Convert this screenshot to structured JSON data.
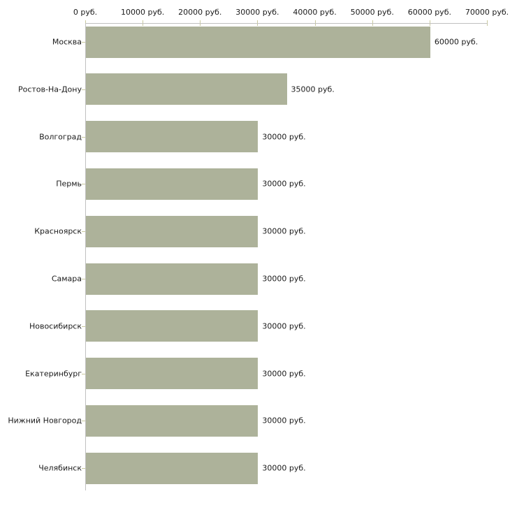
{
  "chart_data": {
    "type": "bar",
    "orientation": "horizontal",
    "title": "",
    "xlabel": "",
    "ylabel": "",
    "unit": "руб.",
    "categories": [
      "Москва",
      "Ростов-На-Дону",
      "Волгоград",
      "Пермь",
      "Красноярск",
      "Самара",
      "Новосибирск",
      "Екатеринбург",
      "Нижний Новгород",
      "Челябинск"
    ],
    "values": [
      60000,
      35000,
      30000,
      30000,
      30000,
      30000,
      30000,
      30000,
      30000,
      30000
    ],
    "value_labels": [
      "60000 руб.",
      "35000 руб.",
      "30000 руб.",
      "30000 руб.",
      "30000 руб.",
      "30000 руб.",
      "30000 руб.",
      "30000 руб.",
      "30000 руб.",
      "30000 руб."
    ],
    "x_ticks": [
      0,
      10000,
      20000,
      30000,
      40000,
      50000,
      60000,
      70000
    ],
    "x_tick_labels": [
      "0 руб.",
      "10000 руб.",
      "20000 руб.",
      "30000 руб.",
      "40000 руб.",
      "50000 руб.",
      "60000 руб.",
      "70000 руб."
    ],
    "xlim": [
      0,
      70000
    ],
    "grid": false,
    "legend": false,
    "colors": {
      "bar": "#adb29a",
      "axis_line": "#c0c0c0",
      "tick_mark": "#c9c99e",
      "text": "#1a1a1a",
      "background": "#ffffff"
    }
  }
}
